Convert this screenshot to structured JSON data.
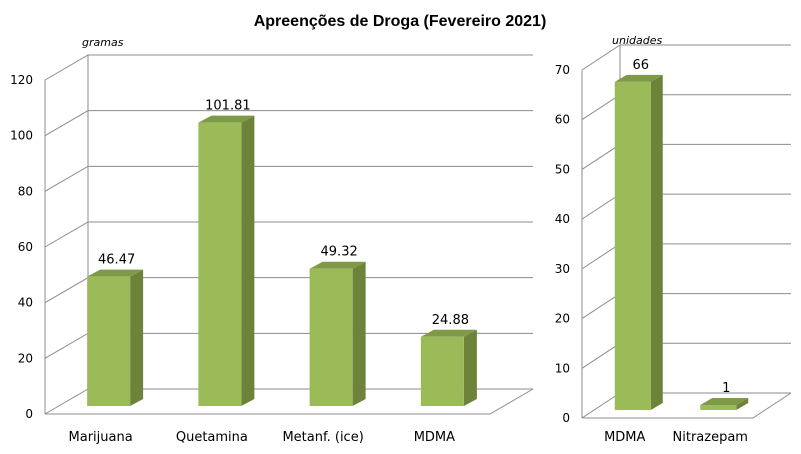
{
  "chart_title": "Apreenções de Droga (Fevereiro 2021)",
  "colors": {
    "bar_front": "#9bbb59",
    "bar_side": "#6c8339",
    "bar_top": "#7f9a46",
    "grid": "#8c8c8c"
  },
  "chart_data": [
    {
      "type": "bar",
      "title": "",
      "unit_label": "gramas",
      "categories": [
        "Marijuana",
        "Quetamina",
        "Metanf. (ice)",
        "MDMA"
      ],
      "values": [
        46.47,
        101.81,
        49.32,
        24.88
      ],
      "value_labels": [
        "46.47",
        "101.81",
        "49.32",
        "24.88"
      ],
      "ylim": [
        0,
        120
      ],
      "yticks": [
        "0",
        "20",
        "40",
        "60",
        "80",
        "100",
        "120"
      ],
      "grid": true,
      "style": "3d"
    },
    {
      "type": "bar",
      "title": "",
      "unit_label": "unidades",
      "categories": [
        "MDMA",
        "Nitrazepam"
      ],
      "values": [
        66,
        1
      ],
      "value_labels": [
        "66",
        "1"
      ],
      "ylim": [
        0,
        70
      ],
      "yticks": [
        "0",
        "10",
        "20",
        "30",
        "40",
        "50",
        "60",
        "70"
      ],
      "grid": true,
      "style": "3d"
    }
  ]
}
